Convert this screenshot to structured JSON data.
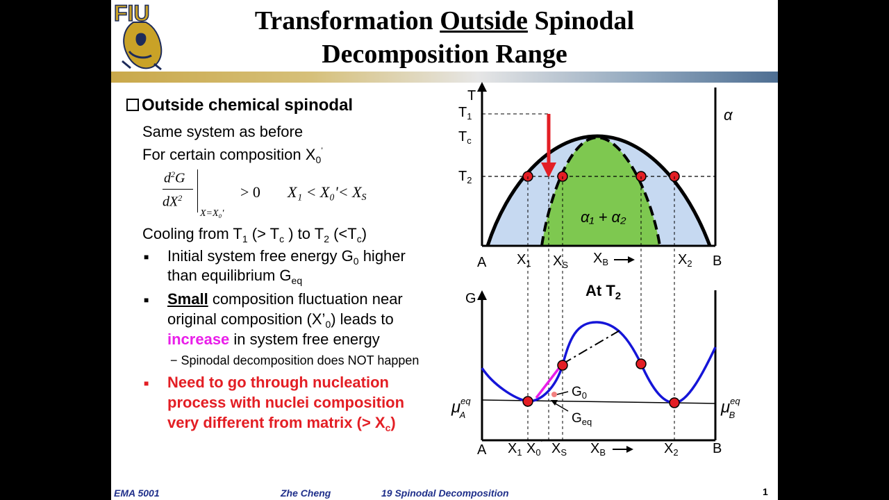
{
  "title": {
    "line1_a": "Transformation ",
    "line1_b": "Outside",
    "line1_c": " Spinodal",
    "line2": "Decomposition Range"
  },
  "logo": {
    "text": "FIU"
  },
  "heading": "Outside chemical spinodal",
  "body": {
    "l1": "Same system as before",
    "l2": "For certain composition X",
    "l2_sub": "0",
    "l2_sup": "’",
    "eq_cond": "> 0",
    "eq_range": "X₁ < X₀'< X",
    "eq_range_sub": "S",
    "eq_eval": "X=X₀′",
    "cool_a": "Cooling from T",
    "cool_b": " (> T",
    "cool_c": " ) to T",
    "cool_d": " (<T",
    "cool_e": ")",
    "s1": "1",
    "s2": "c",
    "s3": "2",
    "s4": "c",
    "b1a": "Initial system free energy G",
    "b1a_sub": "0",
    "b1b": " higher",
    "b1c": "than equilibrium G",
    "b1c_sub": "eq",
    "b2_small": "Small",
    "b2a": " composition fluctuation near",
    "b2b": "original composition (X’",
    "b2b_sub": "0",
    "b2c": ") leads to",
    "b2_increase": "increase",
    "b2d": " in system free energy",
    "dash": "− Spinodal decomposition does NOT happen",
    "r1": "Need to go through nucleation",
    "r2": "process with nuclei composition",
    "r3": "very different from matrix (> X",
    "r3_sub": "c",
    "r3_end": ")"
  },
  "phase": {
    "T": "T",
    "T1": "T",
    "T1s": "1",
    "Tc": "T",
    "Tcs": "c",
    "T2": "T",
    "T2s": "2",
    "alpha": "α",
    "two_phase": "α₁ + α₂",
    "A": "A",
    "X1": "X",
    "X1s": "1",
    "XS": "X",
    "XSs": "S",
    "XB": "X",
    "XBs": "B",
    "X2": "X",
    "X2s": "2",
    "B": "B",
    "colors": {
      "outer": "#c6d9f1",
      "inner": "#7ec850",
      "arrow": "#e31e24",
      "dot": "#e31e24"
    }
  },
  "gplot": {
    "at": "At T",
    "at_s": "2",
    "G": "G",
    "G0": "G",
    "G0s": "0",
    "Geq": "G",
    "Geqs": "eq",
    "muA": "μ",
    "muAs": "A",
    "muB": "μ",
    "muBs": "B",
    "mu_sup": "eq",
    "A": "A",
    "X1": "X",
    "X1s": "1",
    "X0": "X",
    "X0s": "0",
    "X0sup": "’",
    "XS": "X",
    "XSs": "S",
    "XB": "X",
    "XBs": "B",
    "X2": "X",
    "X2s": "2",
    "B": "B",
    "colors": {
      "curve": "#1515d8",
      "tangent": "#e91ee9"
    }
  },
  "footer": {
    "course": "EMA 5001",
    "author": "Zhe Cheng",
    "topic": "19  Spinodal Decomposition",
    "page": "1"
  }
}
